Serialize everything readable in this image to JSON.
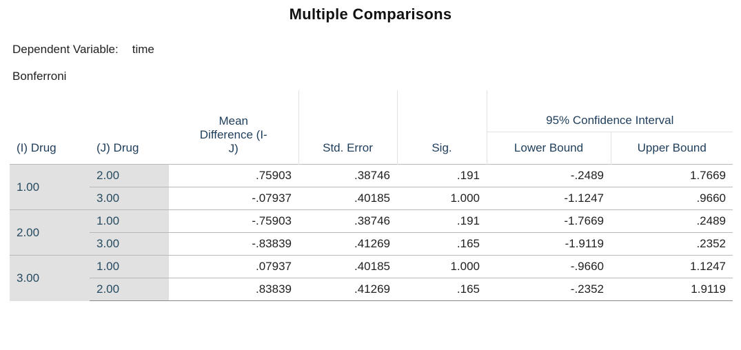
{
  "title": "Multiple Comparisons",
  "dependent_label": "Dependent Variable:",
  "dependent_value": "time",
  "method": "Bonferroni",
  "headers": {
    "i_drug": "(I) Drug",
    "j_drug": "(J) Drug",
    "mean_diff_line1": "Mean",
    "mean_diff_line2": "Difference (I-",
    "mean_diff_line3": "J)",
    "std_error": "Std. Error",
    "sig": "Sig.",
    "ci": "95% Confidence Interval",
    "lower": "Lower Bound",
    "upper": "Upper Bound"
  },
  "rows": [
    {
      "i": "1.00",
      "j": "2.00",
      "mean_diff": ".75903",
      "std_error": ".38746",
      "sig": ".191",
      "lower": "-.2489",
      "upper": "1.7669"
    },
    {
      "i": "",
      "j": "3.00",
      "mean_diff": "-.07937",
      "std_error": ".40185",
      "sig": "1.000",
      "lower": "-1.1247",
      "upper": ".9660"
    },
    {
      "i": "2.00",
      "j": "1.00",
      "mean_diff": "-.75903",
      "std_error": ".38746",
      "sig": ".191",
      "lower": "-1.7669",
      "upper": ".2489"
    },
    {
      "i": "",
      "j": "3.00",
      "mean_diff": "-.83839",
      "std_error": ".41269",
      "sig": ".165",
      "lower": "-1.9119",
      "upper": ".2352"
    },
    {
      "i": "3.00",
      "j": "1.00",
      "mean_diff": ".07937",
      "std_error": ".40185",
      "sig": "1.000",
      "lower": "-.9660",
      "upper": "1.1247"
    },
    {
      "i": "",
      "j": "2.00",
      "mean_diff": ".83839",
      "std_error": ".41269",
      "sig": ".165",
      "lower": "-.2352",
      "upper": "1.9119"
    }
  ]
}
